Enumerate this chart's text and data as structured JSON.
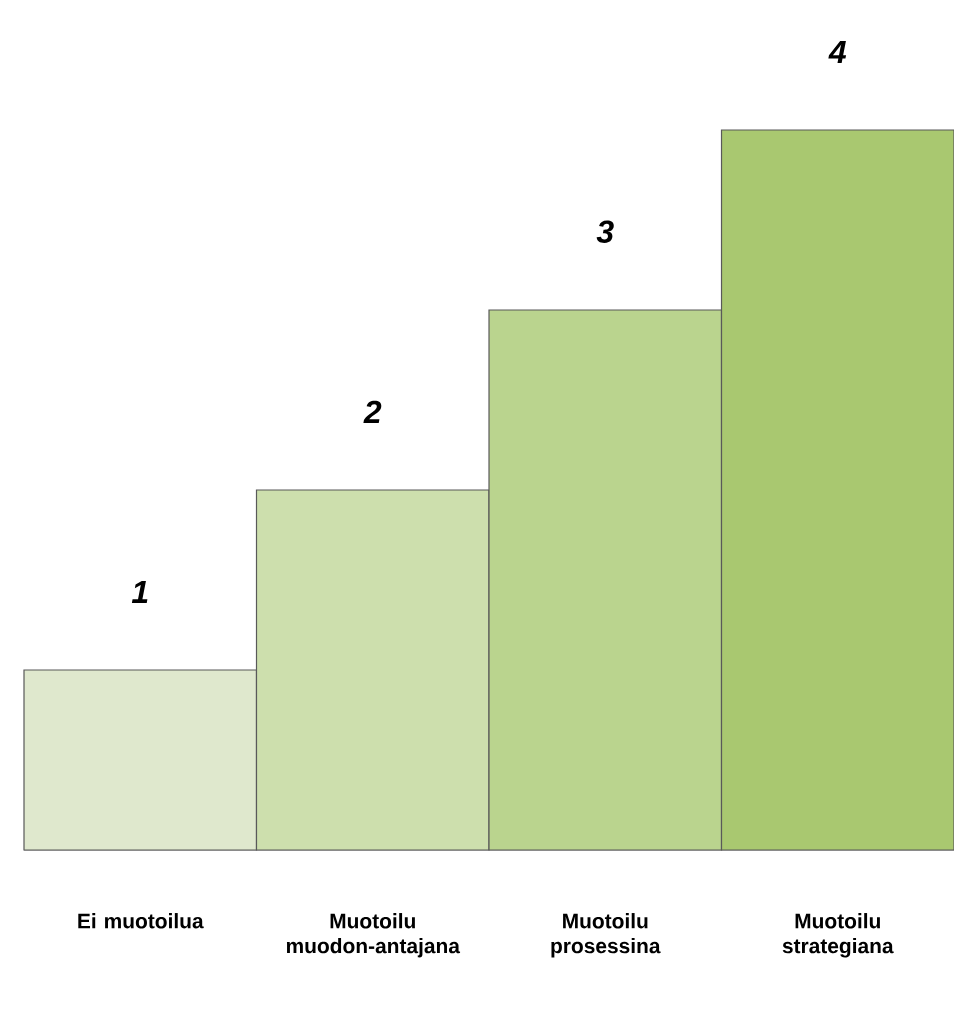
{
  "chart_data": {
    "type": "bar",
    "categories": [
      "Ei muotoilua",
      "Muotoilu muodon-antajana",
      "Muotoilu prosessina",
      "Muotoilu strategiana"
    ],
    "values": [
      1,
      2,
      3,
      4
    ],
    "colors": [
      "#dfe8cd",
      "#cddfad",
      "#bad48e",
      "#a9c870"
    ],
    "value_labels": [
      "1",
      "2",
      "3",
      "4"
    ]
  }
}
